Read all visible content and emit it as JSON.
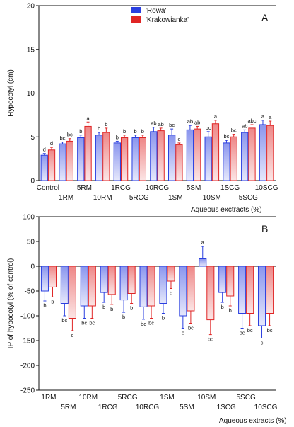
{
  "colors": {
    "rowa": "#2a3fe0",
    "krakowianka": "#e02525",
    "axis": "#111111",
    "text": "#111111"
  },
  "chart_data": [
    {
      "type": "bar",
      "panel_letter": "A",
      "ylabel": "Hypocotyl (cm)",
      "xlabel": "Aqueous exctracts (%)",
      "ylim": [
        0,
        20
      ],
      "yticks": [
        0,
        5,
        10,
        15,
        20
      ],
      "grid": false,
      "legend_position": "top-center",
      "categories": [
        "Control",
        "1RM",
        "5RM",
        "10RM",
        "1RCG",
        "5RCG",
        "10RCG",
        "1SM",
        "5SM",
        "10SM",
        "1SCG",
        "5SCG",
        "10SCG"
      ],
      "series": [
        {
          "name": "'Rowa'",
          "values": [
            2.9,
            4.2,
            4.9,
            5.2,
            4.3,
            4.9,
            5.6,
            5.2,
            5.8,
            5.0,
            4.3,
            5.5,
            6.4
          ],
          "errors": [
            0.2,
            0.2,
            0.3,
            0.3,
            0.2,
            0.3,
            0.5,
            0.7,
            0.5,
            0.6,
            0.3,
            0.3,
            0.5
          ],
          "letters": [
            "d",
            "bc",
            "b",
            "b",
            "b",
            "b",
            "ab",
            "bc",
            "ab",
            "bc",
            "bc",
            "ab",
            "a"
          ]
        },
        {
          "name": "'Krakowianka'",
          "values": [
            3.5,
            4.5,
            6.2,
            5.5,
            4.9,
            4.9,
            5.7,
            4.1,
            5.9,
            6.5,
            5.0,
            6.0,
            6.3
          ],
          "errors": [
            0.3,
            0.3,
            0.5,
            0.5,
            0.3,
            0.3,
            0.3,
            0.2,
            0.3,
            0.4,
            0.3,
            0.4,
            0.5
          ],
          "letters": [
            "d",
            "bc",
            "a",
            "b",
            "b",
            "b",
            "ab",
            "c",
            "ab",
            "a",
            "bc",
            "abc",
            "a"
          ]
        }
      ]
    },
    {
      "type": "bar",
      "panel_letter": "B",
      "ylabel": "IP of hypocotyl (% of control)",
      "xlabel": "Aqueous extracts (%)",
      "ylim": [
        -250,
        100
      ],
      "yticks": [
        -250,
        -200,
        -150,
        -100,
        -50,
        0,
        50,
        100
      ],
      "grid": false,
      "categories": [
        "1RM",
        "5RM",
        "10RM",
        "1RCG",
        "5RCG",
        "10RCG",
        "1SM",
        "5SM",
        "10SM",
        "1SCG",
        "5SCG",
        "10SCG"
      ],
      "series": [
        {
          "name": "'Rowa'",
          "values": [
            -50,
            -75,
            -80,
            -53,
            -68,
            -82,
            -75,
            -100,
            15,
            -53,
            -95,
            -120
          ],
          "errors": [
            20,
            25,
            25,
            20,
            25,
            25,
            20,
            25,
            25,
            20,
            30,
            25
          ],
          "letters": [
            "b",
            "bc",
            "bc",
            "b",
            "b",
            "bc",
            "b",
            "c",
            "a",
            "b",
            "bc",
            "c"
          ]
        },
        {
          "name": "'Krakowianka'",
          "values": [
            -42,
            -105,
            -80,
            -57,
            -55,
            -80,
            -30,
            -90,
            -108,
            -60,
            -95,
            -95
          ],
          "errors": [
            20,
            25,
            25,
            20,
            20,
            25,
            15,
            25,
            30,
            20,
            25,
            25
          ],
          "letters": [
            "b",
            "c",
            "bc",
            "b",
            "b",
            "bc",
            "b",
            "bc",
            "bc",
            "b",
            "bc",
            "bc"
          ]
        }
      ]
    }
  ]
}
